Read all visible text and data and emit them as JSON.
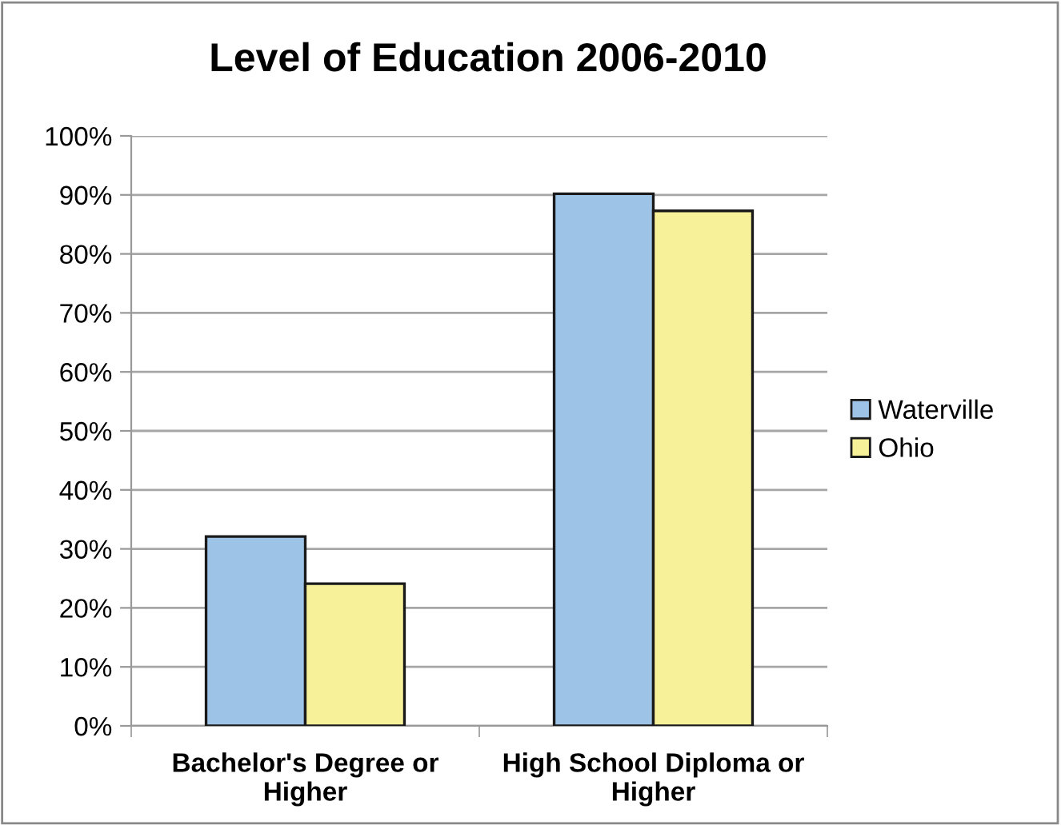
{
  "chart_data": {
    "type": "bar",
    "title": "Level of Education 2006-2010",
    "categories": [
      "Bachelor's Degree or Higher",
      "High School Diploma or Higher"
    ],
    "series": [
      {
        "name": "Waterville",
        "color": "#9dc3e6",
        "values": [
          32.1,
          90.2
        ]
      },
      {
        "name": "Ohio",
        "color": "#f7f199",
        "values": [
          24.1,
          87.3
        ]
      }
    ],
    "ylim": [
      0,
      100
    ],
    "yticks": [
      {
        "value": 0,
        "label": "0%"
      },
      {
        "value": 10,
        "label": "10%"
      },
      {
        "value": 20,
        "label": "20%"
      },
      {
        "value": 30,
        "label": "30%"
      },
      {
        "value": 40,
        "label": "40%"
      },
      {
        "value": 50,
        "label": "50%"
      },
      {
        "value": 60,
        "label": "60%"
      },
      {
        "value": 70,
        "label": "70%"
      },
      {
        "value": 80,
        "label": "80%"
      },
      {
        "value": 90,
        "label": "90%"
      },
      {
        "value": 100,
        "label": "100%"
      }
    ],
    "grid": "y",
    "legend": "right"
  }
}
